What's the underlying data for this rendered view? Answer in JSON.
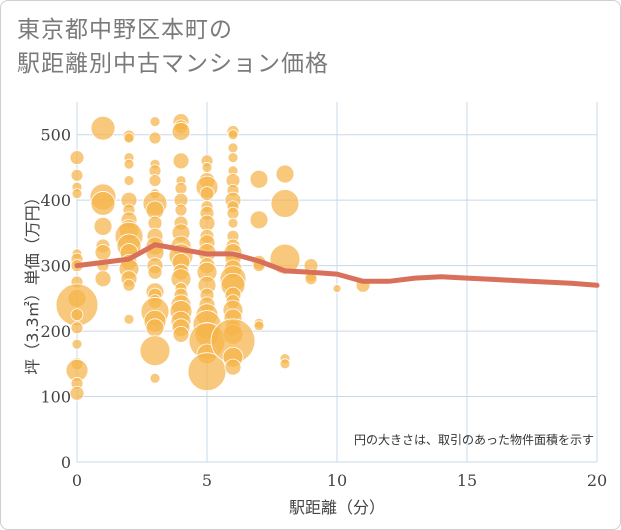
{
  "title_line1": "東京都中野区本町の",
  "title_line2": "駅距離別中古マンション価格",
  "colors": {
    "bubble": "#f5b44a",
    "bubble_stroke": "#ffffff",
    "line": "#d9705a",
    "grid": "#c8d8e8",
    "plot_bg": "#ffffff"
  },
  "chart_data": {
    "type": "scatter",
    "xlabel": "駅距離（分）",
    "ylabel": "坪（3.3㎡）単価（万円）",
    "xlim": [
      0,
      20
    ],
    "ylim": [
      0,
      550
    ],
    "xticks": [
      "0",
      "5",
      "10",
      "15",
      "20"
    ],
    "yticks": [
      "0",
      "100",
      "200",
      "300",
      "400",
      "500"
    ],
    "note": "円の大きさは、取引のあった物件面積を示す",
    "trend": {
      "x": [
        0,
        1,
        2,
        3,
        4,
        5,
        6,
        7,
        8,
        9,
        10,
        11,
        12,
        13,
        14,
        15,
        16,
        17,
        18,
        19,
        20
      ],
      "y": [
        300,
        305,
        310,
        332,
        325,
        318,
        318,
        307,
        292,
        290,
        287,
        276,
        276,
        281,
        283,
        281,
        279,
        277,
        275,
        273,
        270
      ]
    },
    "bubbles": [
      [
        0,
        465,
        7
      ],
      [
        0,
        438,
        6
      ],
      [
        0,
        420,
        5
      ],
      [
        0,
        410,
        5
      ],
      [
        0,
        318,
        5
      ],
      [
        0,
        310,
        6
      ],
      [
        0,
        300,
        6
      ],
      [
        0,
        275,
        6
      ],
      [
        0,
        250,
        9
      ],
      [
        0,
        240,
        21
      ],
      [
        0,
        225,
        6
      ],
      [
        0,
        205,
        6
      ],
      [
        0,
        180,
        5
      ],
      [
        0,
        150,
        6
      ],
      [
        0,
        140,
        11
      ],
      [
        0,
        120,
        6
      ],
      [
        0,
        105,
        7
      ],
      [
        1,
        510,
        12
      ],
      [
        1,
        405,
        13
      ],
      [
        1,
        395,
        12
      ],
      [
        1,
        360,
        9
      ],
      [
        1,
        330,
        7
      ],
      [
        1,
        320,
        8
      ],
      [
        1,
        300,
        6
      ],
      [
        1,
        280,
        8
      ],
      [
        2,
        498,
        6
      ],
      [
        2,
        495,
        5
      ],
      [
        2,
        465,
        5
      ],
      [
        2,
        455,
        5
      ],
      [
        2,
        430,
        5
      ],
      [
        2,
        400,
        8
      ],
      [
        2,
        385,
        6
      ],
      [
        2,
        370,
        8
      ],
      [
        2,
        355,
        10
      ],
      [
        2,
        345,
        14
      ],
      [
        2,
        330,
        12
      ],
      [
        2,
        320,
        9
      ],
      [
        2,
        305,
        8
      ],
      [
        2,
        295,
        10
      ],
      [
        2,
        280,
        8
      ],
      [
        2,
        270,
        6
      ],
      [
        2,
        218,
        5
      ],
      [
        3,
        520,
        5
      ],
      [
        3,
        495,
        6
      ],
      [
        3,
        455,
        5
      ],
      [
        3,
        445,
        6
      ],
      [
        3,
        430,
        6
      ],
      [
        3,
        410,
        5
      ],
      [
        3,
        395,
        12
      ],
      [
        3,
        385,
        9
      ],
      [
        3,
        365,
        7
      ],
      [
        3,
        345,
        8
      ],
      [
        3,
        330,
        9
      ],
      [
        3,
        320,
        9
      ],
      [
        3,
        300,
        8
      ],
      [
        3,
        290,
        7
      ],
      [
        3,
        260,
        9
      ],
      [
        3,
        255,
        7
      ],
      [
        3,
        245,
        7
      ],
      [
        3,
        230,
        14
      ],
      [
        3,
        215,
        11
      ],
      [
        3,
        205,
        9
      ],
      [
        3,
        170,
        15
      ],
      [
        3,
        128,
        5
      ],
      [
        4,
        520,
        8
      ],
      [
        4,
        512,
        7
      ],
      [
        4,
        505,
        9
      ],
      [
        4,
        460,
        8
      ],
      [
        4,
        430,
        5
      ],
      [
        4,
        418,
        6
      ],
      [
        4,
        400,
        7
      ],
      [
        4,
        385,
        6
      ],
      [
        4,
        365,
        7
      ],
      [
        4,
        350,
        9
      ],
      [
        4,
        330,
        10
      ],
      [
        4,
        315,
        12
      ],
      [
        4,
        305,
        9
      ],
      [
        4,
        290,
        8
      ],
      [
        4,
        280,
        10
      ],
      [
        4,
        265,
        6
      ],
      [
        4,
        255,
        7
      ],
      [
        4,
        240,
        10
      ],
      [
        4,
        230,
        11
      ],
      [
        4,
        215,
        10
      ],
      [
        4,
        205,
        9
      ],
      [
        4,
        195,
        8
      ],
      [
        5,
        460,
        6
      ],
      [
        5,
        450,
        5
      ],
      [
        5,
        430,
        8
      ],
      [
        5,
        420,
        11
      ],
      [
        5,
        410,
        7
      ],
      [
        5,
        390,
        6
      ],
      [
        5,
        380,
        7
      ],
      [
        5,
        365,
        8
      ],
      [
        5,
        345,
        7
      ],
      [
        5,
        335,
        8
      ],
      [
        5,
        320,
        9
      ],
      [
        5,
        300,
        8
      ],
      [
        5,
        290,
        10
      ],
      [
        5,
        270,
        9
      ],
      [
        5,
        255,
        7
      ],
      [
        5,
        240,
        8
      ],
      [
        5,
        225,
        11
      ],
      [
        5,
        210,
        14
      ],
      [
        5,
        195,
        12
      ],
      [
        5,
        185,
        18
      ],
      [
        5,
        165,
        10
      ],
      [
        5,
        138,
        19
      ],
      [
        6,
        505,
        6
      ],
      [
        6,
        500,
        5
      ],
      [
        6,
        480,
        5
      ],
      [
        6,
        465,
        5
      ],
      [
        6,
        445,
        5
      ],
      [
        6,
        430,
        7
      ],
      [
        6,
        415,
        6
      ],
      [
        6,
        400,
        8
      ],
      [
        6,
        390,
        6
      ],
      [
        6,
        380,
        6
      ],
      [
        6,
        365,
        5
      ],
      [
        6,
        345,
        6
      ],
      [
        6,
        330,
        7
      ],
      [
        6,
        320,
        9
      ],
      [
        6,
        310,
        8
      ],
      [
        6,
        295,
        9
      ],
      [
        6,
        280,
        13
      ],
      [
        6,
        270,
        12
      ],
      [
        6,
        255,
        8
      ],
      [
        6,
        245,
        7
      ],
      [
        6,
        232,
        10
      ],
      [
        6,
        220,
        9
      ],
      [
        6,
        205,
        8
      ],
      [
        6,
        195,
        10
      ],
      [
        6,
        185,
        22
      ],
      [
        6,
        160,
        10
      ],
      [
        6,
        145,
        8
      ],
      [
        7,
        432,
        9
      ],
      [
        7,
        370,
        9
      ],
      [
        7,
        305,
        7
      ],
      [
        7,
        300,
        6
      ],
      [
        7,
        212,
        5
      ],
      [
        7,
        208,
        5
      ],
      [
        8,
        440,
        9
      ],
      [
        8,
        395,
        14
      ],
      [
        8,
        310,
        15
      ],
      [
        8,
        158,
        5
      ],
      [
        8,
        150,
        5
      ],
      [
        9,
        300,
        7
      ],
      [
        9,
        285,
        6
      ],
      [
        9,
        280,
        6
      ],
      [
        10,
        265,
        4
      ],
      [
        11,
        270,
        7
      ]
    ]
  }
}
